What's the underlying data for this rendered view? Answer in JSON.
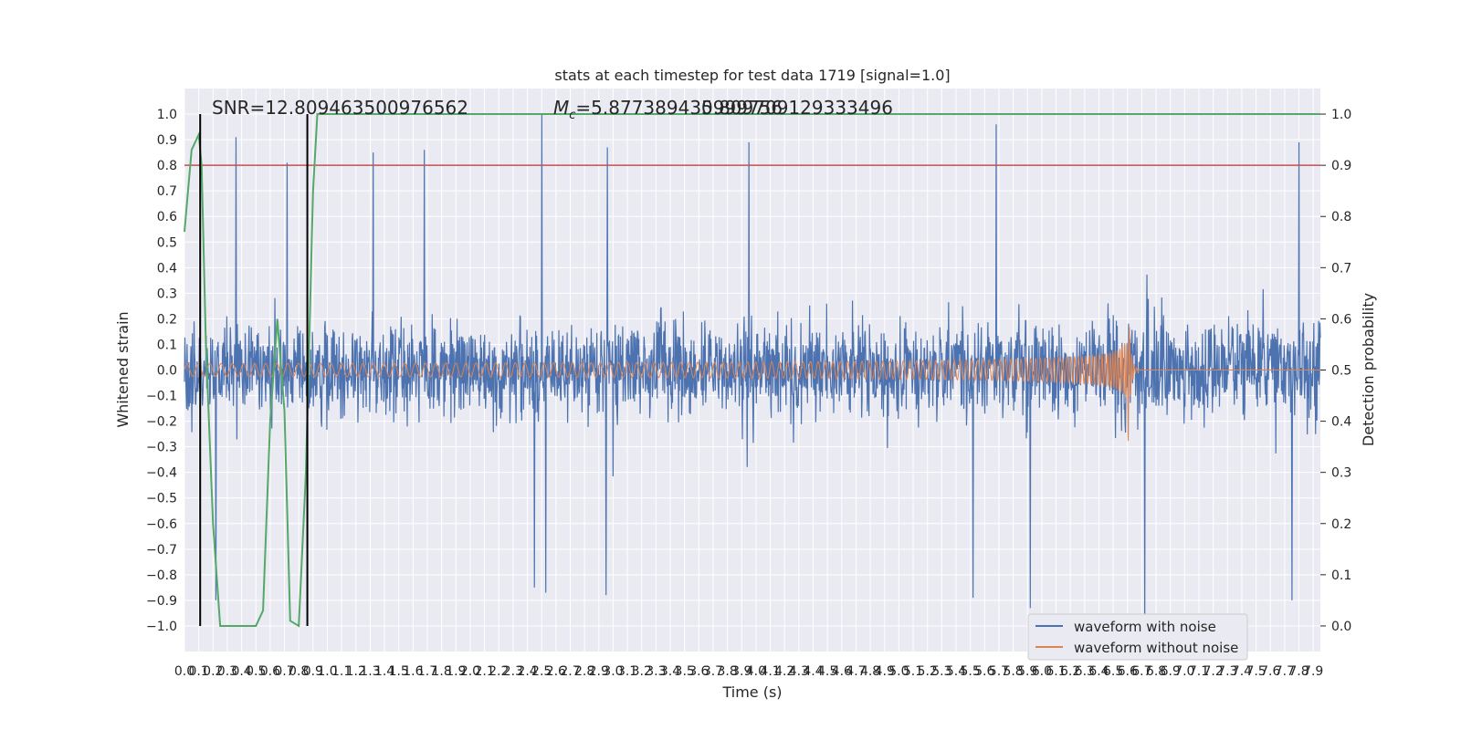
{
  "chart_data": {
    "type": "line",
    "title": "stats at each timestep for test data 1719 [signal=1.0]",
    "xlabel": "Time (s)",
    "ylabel": "Whitened strain",
    "y2label": "Detection probability",
    "annotations": {
      "snr": "SNR=12.809463500976562",
      "mc_symbol": "M",
      "mc_sub": "c",
      "mc_value": "=5.877389430999756",
      "overlap_value": "5.809709129333496"
    },
    "xlim": [
      0.0,
      7.95
    ],
    "ylim": [
      -1.1,
      1.1
    ],
    "y2lim": [
      -0.05,
      1.05
    ],
    "x_ticks": [
      0.0,
      0.1,
      0.2,
      0.3,
      0.4,
      0.5,
      0.6,
      0.7,
      0.8,
      0.9,
      1.0,
      1.1,
      1.2,
      1.3,
      1.4,
      1.5,
      1.6,
      1.7,
      1.8,
      1.9,
      2.0,
      2.1,
      2.2,
      2.3,
      2.4,
      2.5,
      2.6,
      2.7,
      2.8,
      2.9,
      3.0,
      3.1,
      3.2,
      3.3,
      3.4,
      3.5,
      3.6,
      3.7,
      3.8,
      3.9,
      4.0,
      4.1,
      4.2,
      4.3,
      4.4,
      4.5,
      4.6,
      4.7,
      4.8,
      4.9,
      5.0,
      5.1,
      5.2,
      5.3,
      5.4,
      5.5,
      5.6,
      5.7,
      5.8,
      5.9,
      6.0,
      6.1,
      6.2,
      6.3,
      6.4,
      6.5,
      6.6,
      6.7,
      6.8,
      6.9,
      7.0,
      7.1,
      7.2,
      7.3,
      7.4,
      7.5,
      7.6,
      7.7,
      7.8,
      7.9
    ],
    "x_tick_labels": [
      "0.0",
      "0.1",
      "0.2",
      "0.3",
      "0.4",
      "0.5",
      "0.6",
      "0.7",
      "0.8",
      "0.9",
      "1.0",
      "1.1",
      "1.2",
      "1.3",
      "1.4",
      "1.5",
      "1.6",
      "1.7",
      "1.8",
      "1.9",
      "2.0",
      "2.1",
      "2.2",
      "2.3",
      "2.4",
      "2.5",
      "2.6",
      "2.7",
      "2.8",
      "2.9",
      "3.0",
      "3.1",
      "3.2",
      "3.3",
      "3.4",
      "3.5",
      "3.6",
      "3.7",
      "3.8",
      "3.9",
      "4.0",
      "4.1",
      "4.2",
      "4.3",
      "4.4",
      "4.5",
      "4.6",
      "4.7",
      "4.8",
      "4.9",
      "5.0",
      "5.1",
      "5.2",
      "5.3",
      "5.4",
      "5.5",
      "5.6",
      "5.7",
      "5.8",
      "5.9",
      "6.0",
      "6.1",
      "6.2",
      "6.3",
      "6.4",
      "6.5",
      "6.6",
      "6.7",
      "6.8",
      "6.9",
      "7.0",
      "7.1",
      "7.2",
      "7.3",
      "7.4",
      "7.5",
      "7.6",
      "7.7",
      "7.8",
      "7.9"
    ],
    "y_ticks": [
      1.0,
      0.9,
      0.8,
      0.7,
      0.6,
      0.5,
      0.4,
      0.3,
      0.2,
      0.1,
      0.0,
      -0.1,
      -0.2,
      -0.3,
      -0.4,
      -0.5,
      -0.6,
      -0.7,
      -0.8,
      -0.9,
      -1.0
    ],
    "y_tick_labels": [
      "1.0",
      "0.9",
      "0.8",
      "0.7",
      "0.6",
      "0.5",
      "0.4",
      "0.3",
      "0.2",
      "0.1",
      "0.0",
      "−0.1",
      "−0.2",
      "−0.3",
      "−0.4",
      "−0.5",
      "−0.6",
      "−0.7",
      "−0.8",
      "−0.9",
      "−1.0"
    ],
    "y2_ticks": [
      1.0,
      0.9,
      0.8,
      0.7,
      0.6,
      0.5,
      0.4,
      0.3,
      0.2,
      0.1,
      0.0
    ],
    "y2_tick_labels": [
      "1.0",
      "0.9",
      "0.8",
      "0.7",
      "0.6",
      "0.5",
      "0.4",
      "0.3",
      "0.2",
      "0.1",
      "0.0"
    ],
    "series": [
      {
        "name": "waveform with noise",
        "color": "#4c72b0",
        "kind": "noise",
        "x_range": [
          0.0,
          7.95
        ],
        "envelope_typical": 0.4,
        "peaks": [
          {
            "x": 0.36,
            "y": 0.91
          },
          {
            "x": 0.72,
            "y": 0.81
          },
          {
            "x": 1.32,
            "y": 0.85
          },
          {
            "x": 1.68,
            "y": 0.86
          },
          {
            "x": 2.5,
            "y": 1.0
          },
          {
            "x": 2.96,
            "y": 0.87
          },
          {
            "x": 3.95,
            "y": 0.89
          },
          {
            "x": 5.68,
            "y": 0.96
          },
          {
            "x": 7.8,
            "y": 0.89
          },
          {
            "x": 2.45,
            "y": -0.85
          },
          {
            "x": 2.53,
            "y": -0.87
          },
          {
            "x": 2.95,
            "y": -0.88
          },
          {
            "x": 5.52,
            "y": -0.89
          },
          {
            "x": 5.92,
            "y": -0.93
          },
          {
            "x": 6.72,
            "y": -1.0
          },
          {
            "x": 7.75,
            "y": -0.9
          },
          {
            "x": 0.22,
            "y": -0.9
          }
        ]
      },
      {
        "name": "waveform without noise",
        "color": "#dd8452",
        "kind": "chirp",
        "start_amplitude": 0.025,
        "peak_amplitude": 0.38,
        "merger_time": 6.6,
        "cycles_per_tick": 1.25
      }
    ],
    "detection_probability": {
      "color": "#55a868",
      "axis": "y2",
      "x": [
        0.0,
        0.05,
        0.1,
        0.12,
        0.15,
        0.2,
        0.25,
        0.3,
        0.35,
        0.4,
        0.5,
        0.55,
        0.6,
        0.65,
        0.7,
        0.74,
        0.8,
        0.85,
        0.9,
        0.93,
        1.0,
        7.95
      ],
      "y": [
        0.77,
        0.93,
        0.96,
        0.9,
        0.55,
        0.2,
        0.0,
        0.0,
        0.0,
        0.0,
        0.0,
        0.03,
        0.4,
        0.6,
        0.42,
        0.01,
        0.0,
        0.3,
        0.85,
        1.0,
        1.0,
        1.0
      ]
    },
    "threshold": {
      "y2": 0.9,
      "color": "#c44e52"
    },
    "vertical_lines": [
      {
        "x": 0.11,
        "color": "#000000"
      },
      {
        "x": 0.86,
        "color": "#000000"
      }
    ],
    "legend": {
      "placement": "lower-right",
      "entries": [
        "waveform with noise",
        "waveform without noise"
      ]
    },
    "grid": true,
    "background": "#eaeaf2"
  }
}
